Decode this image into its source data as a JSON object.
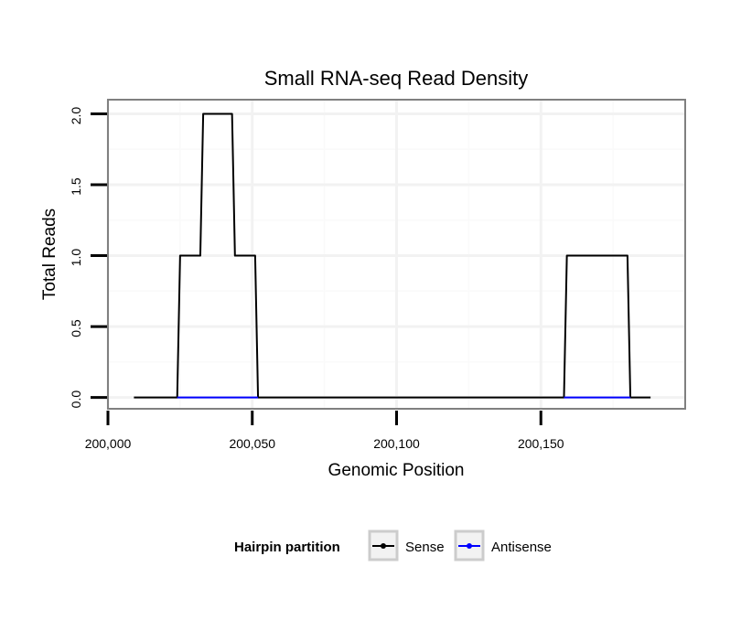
{
  "chart_data": {
    "type": "line",
    "title": "Small RNA-seq Read Density",
    "xlabel": "Genomic Position",
    "ylabel": "Total Reads",
    "xlim": [
      200000,
      200200
    ],
    "ylim": [
      -0.08,
      2.1
    ],
    "x_ticks": [
      200000,
      200050,
      200100,
      200150
    ],
    "x_tick_labels": [
      "200,000",
      "200,050",
      "200,100",
      "200,150"
    ],
    "y_ticks": [
      0.0,
      0.5,
      1.0,
      1.5,
      2.0
    ],
    "y_tick_labels": [
      "0.0",
      "0.5",
      "1.0",
      "1.5",
      "2.0"
    ],
    "grid": true,
    "legend": {
      "title": "Hairpin partition",
      "placement": "bottom",
      "entries": [
        {
          "label": "Sense",
          "color": "#000000"
        },
        {
          "label": "Antisense",
          "color": "#0000ff"
        }
      ]
    },
    "series": [
      {
        "name": "Sense",
        "color": "#000000",
        "x": [
          200009,
          200024,
          200025,
          200032,
          200033,
          200043,
          200044,
          200051,
          200052,
          200158,
          200159,
          200180,
          200181,
          200188
        ],
        "y": [
          0,
          0,
          1,
          1,
          2,
          2,
          1,
          1,
          0,
          0,
          1,
          1,
          0,
          0
        ]
      },
      {
        "name": "Antisense",
        "color": "#0000ff",
        "x": [
          200024,
          200052,
          200158,
          200181
        ],
        "y": [
          0,
          0,
          0,
          0
        ],
        "segments": [
          [
            0,
            1
          ],
          [
            2,
            3
          ]
        ]
      }
    ]
  }
}
